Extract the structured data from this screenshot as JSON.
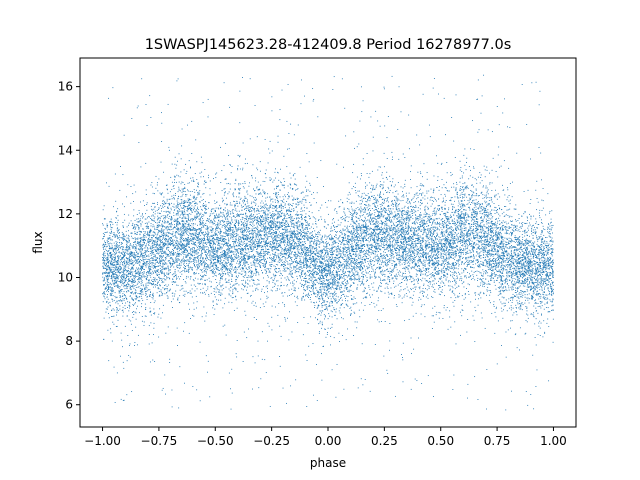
{
  "chart_data": {
    "type": "scatter",
    "title": "1SWASPJ145623.28-412409.8 Period 16278977.0s",
    "xlabel": "phase",
    "ylabel": "flux",
    "xlim": [
      -1.1,
      1.1
    ],
    "ylim": [
      5.3,
      16.9
    ],
    "xticks": [
      -1.0,
      -0.75,
      -0.5,
      -0.25,
      0.0,
      0.25,
      0.5,
      0.75,
      1.0
    ],
    "xtick_labels": [
      "−1.00",
      "−0.75",
      "−0.50",
      "−0.25",
      "0.00",
      "0.25",
      "0.50",
      "0.75",
      "1.00"
    ],
    "yticks": [
      6,
      8,
      10,
      12,
      14,
      16
    ],
    "ytick_labels": [
      "6",
      "8",
      "10",
      "12",
      "14",
      "16"
    ],
    "grid": false,
    "legend": "none",
    "series": [
      {
        "color": "#1f77b4",
        "marker": "dot",
        "x_range": [
          -1.0,
          1.0
        ],
        "point_count": 16000,
        "symmetric_about": 0.0,
        "flux_profile": {
          "phase": [
            0.0,
            0.05,
            0.1,
            0.15,
            0.2,
            0.25,
            0.3,
            0.35,
            0.4,
            0.45,
            0.5,
            0.55,
            0.6,
            0.65,
            0.7,
            0.75,
            0.8,
            0.85,
            0.9,
            0.95,
            1.0
          ],
          "median_flux": [
            10.1,
            10.4,
            10.8,
            11.1,
            11.3,
            11.3,
            11.3,
            11.2,
            11.1,
            11.0,
            10.9,
            11.1,
            11.3,
            11.4,
            11.2,
            10.9,
            10.6,
            10.4,
            10.3,
            10.3,
            10.4
          ],
          "spread": [
            0.75,
            0.75,
            0.8,
            0.8,
            0.85,
            0.85,
            0.85,
            0.8,
            0.8,
            0.75,
            0.75,
            0.8,
            0.85,
            0.85,
            0.8,
            0.8,
            0.75,
            0.75,
            0.7,
            0.7,
            0.7
          ]
        },
        "outlier_range": [
          5.8,
          16.4
        ]
      }
    ]
  }
}
